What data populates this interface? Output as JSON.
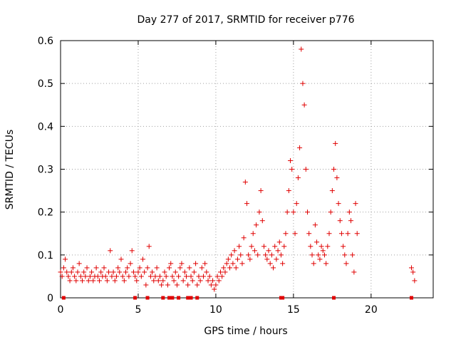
{
  "chart_data": {
    "type": "scatter",
    "title": "Day 277 of 2017, SRMTID for receiver p776",
    "xlabel": "GPS time / hours",
    "ylabel": "SRMTID / TECUs",
    "xlim": [
      0,
      24
    ],
    "ylim": [
      0,
      0.6
    ],
    "xticks": [
      0,
      5,
      10,
      15,
      20
    ],
    "yticks": [
      0,
      0.1,
      0.2,
      0.3,
      0.4,
      0.5,
      0.6
    ],
    "grid": true,
    "marker": "+",
    "color": "#e00000",
    "series": [
      {
        "name": "SRMTID",
        "points": [
          [
            0.0,
            0.06
          ],
          [
            0.1,
            0.05
          ],
          [
            0.2,
            0.07
          ],
          [
            0.3,
            0.09
          ],
          [
            0.4,
            0.06
          ],
          [
            0.5,
            0.05
          ],
          [
            0.6,
            0.04
          ],
          [
            0.7,
            0.06
          ],
          [
            0.8,
            0.07
          ],
          [
            0.9,
            0.05
          ],
          [
            1.0,
            0.04
          ],
          [
            1.1,
            0.06
          ],
          [
            1.2,
            0.08
          ],
          [
            1.3,
            0.05
          ],
          [
            1.4,
            0.04
          ],
          [
            1.5,
            0.06
          ],
          [
            1.6,
            0.05
          ],
          [
            1.7,
            0.07
          ],
          [
            1.8,
            0.04
          ],
          [
            1.9,
            0.05
          ],
          [
            2.0,
            0.06
          ],
          [
            2.1,
            0.04
          ],
          [
            2.2,
            0.05
          ],
          [
            2.3,
            0.07
          ],
          [
            2.4,
            0.05
          ],
          [
            2.5,
            0.04
          ],
          [
            2.6,
            0.06
          ],
          [
            2.7,
            0.05
          ],
          [
            2.8,
            0.07
          ],
          [
            2.9,
            0.05
          ],
          [
            3.0,
            0.04
          ],
          [
            3.1,
            0.06
          ],
          [
            3.2,
            0.11
          ],
          [
            3.3,
            0.05
          ],
          [
            3.4,
            0.06
          ],
          [
            3.5,
            0.04
          ],
          [
            3.6,
            0.05
          ],
          [
            3.7,
            0.07
          ],
          [
            3.8,
            0.06
          ],
          [
            3.9,
            0.09
          ],
          [
            4.0,
            0.05
          ],
          [
            4.1,
            0.04
          ],
          [
            4.2,
            0.06
          ],
          [
            4.3,
            0.07
          ],
          [
            4.4,
            0.05
          ],
          [
            4.5,
            0.08
          ],
          [
            4.6,
            0.11
          ],
          [
            4.7,
            0.06
          ],
          [
            4.8,
            0.05
          ],
          [
            4.9,
            0.04
          ],
          [
            5.0,
            0.06
          ],
          [
            5.1,
            0.07
          ],
          [
            5.2,
            0.05
          ],
          [
            5.3,
            0.09
          ],
          [
            5.4,
            0.06
          ],
          [
            5.5,
            0.03
          ],
          [
            5.6,
            0.07
          ],
          [
            5.7,
            0.12
          ],
          [
            5.8,
            0.05
          ],
          [
            5.9,
            0.06
          ],
          [
            6.0,
            0.04
          ],
          [
            6.1,
            0.05
          ],
          [
            6.2,
            0.07
          ],
          [
            6.3,
            0.04
          ],
          [
            6.4,
            0.05
          ],
          [
            6.5,
            0.03
          ],
          [
            6.6,
            0.04
          ],
          [
            6.7,
            0.06
          ],
          [
            6.8,
            0.05
          ],
          [
            6.9,
            0.03
          ],
          [
            7.0,
            0.07
          ],
          [
            7.1,
            0.08
          ],
          [
            7.2,
            0.05
          ],
          [
            7.3,
            0.04
          ],
          [
            7.4,
            0.06
          ],
          [
            7.5,
            0.03
          ],
          [
            7.6,
            0.05
          ],
          [
            7.7,
            0.07
          ],
          [
            7.8,
            0.08
          ],
          [
            7.9,
            0.04
          ],
          [
            8.0,
            0.06
          ],
          [
            8.1,
            0.05
          ],
          [
            8.2,
            0.03
          ],
          [
            8.3,
            0.07
          ],
          [
            8.4,
            0.05
          ],
          [
            8.5,
            0.04
          ],
          [
            8.6,
            0.06
          ],
          [
            8.7,
            0.08
          ],
          [
            8.8,
            0.03
          ],
          [
            8.9,
            0.05
          ],
          [
            9.0,
            0.04
          ],
          [
            9.1,
            0.07
          ],
          [
            9.2,
            0.05
          ],
          [
            9.3,
            0.08
          ],
          [
            9.4,
            0.06
          ],
          [
            9.5,
            0.04
          ],
          [
            9.6,
            0.05
          ],
          [
            9.7,
            0.03
          ],
          [
            9.8,
            0.04
          ],
          [
            9.9,
            0.02
          ],
          [
            10.0,
            0.03
          ],
          [
            10.1,
            0.05
          ],
          [
            10.2,
            0.04
          ],
          [
            10.3,
            0.06
          ],
          [
            10.4,
            0.05
          ],
          [
            10.5,
            0.07
          ],
          [
            10.6,
            0.06
          ],
          [
            10.7,
            0.08
          ],
          [
            10.8,
            0.09
          ],
          [
            10.9,
            0.07
          ],
          [
            11.0,
            0.1
          ],
          [
            11.1,
            0.08
          ],
          [
            11.2,
            0.11
          ],
          [
            11.3,
            0.07
          ],
          [
            11.4,
            0.09
          ],
          [
            11.5,
            0.12
          ],
          [
            11.6,
            0.1
          ],
          [
            11.7,
            0.08
          ],
          [
            11.8,
            0.14
          ],
          [
            11.9,
            0.27
          ],
          [
            12.0,
            0.22
          ],
          [
            12.1,
            0.1
          ],
          [
            12.2,
            0.09
          ],
          [
            12.3,
            0.12
          ],
          [
            12.4,
            0.15
          ],
          [
            12.5,
            0.11
          ],
          [
            12.6,
            0.17
          ],
          [
            12.7,
            0.1
          ],
          [
            12.8,
            0.2
          ],
          [
            12.9,
            0.25
          ],
          [
            13.0,
            0.18
          ],
          [
            13.1,
            0.12
          ],
          [
            13.2,
            0.1
          ],
          [
            13.3,
            0.09
          ],
          [
            13.4,
            0.11
          ],
          [
            13.5,
            0.08
          ],
          [
            13.6,
            0.1
          ],
          [
            13.7,
            0.07
          ],
          [
            13.8,
            0.12
          ],
          [
            13.9,
            0.09
          ],
          [
            14.0,
            0.11
          ],
          [
            14.1,
            0.13
          ],
          [
            14.2,
            0.1
          ],
          [
            14.3,
            0.08
          ],
          [
            14.4,
            0.12
          ],
          [
            14.5,
            0.15
          ],
          [
            14.6,
            0.2
          ],
          [
            14.7,
            0.25
          ],
          [
            14.8,
            0.32
          ],
          [
            14.9,
            0.3
          ],
          [
            15.0,
            0.2
          ],
          [
            15.1,
            0.15
          ],
          [
            15.2,
            0.22
          ],
          [
            15.3,
            0.28
          ],
          [
            15.4,
            0.35
          ],
          [
            15.5,
            0.58
          ],
          [
            15.6,
            0.5
          ],
          [
            15.7,
            0.45
          ],
          [
            15.8,
            0.3
          ],
          [
            15.9,
            0.2
          ],
          [
            16.0,
            0.15
          ],
          [
            16.1,
            0.12
          ],
          [
            16.2,
            0.1
          ],
          [
            16.3,
            0.08
          ],
          [
            16.4,
            0.17
          ],
          [
            16.5,
            0.13
          ],
          [
            16.6,
            0.1
          ],
          [
            16.7,
            0.09
          ],
          [
            16.8,
            0.12
          ],
          [
            16.9,
            0.11
          ],
          [
            17.0,
            0.1
          ],
          [
            17.1,
            0.08
          ],
          [
            17.2,
            0.12
          ],
          [
            17.3,
            0.15
          ],
          [
            17.4,
            0.2
          ],
          [
            17.5,
            0.25
          ],
          [
            17.6,
            0.3
          ],
          [
            17.7,
            0.36
          ],
          [
            17.8,
            0.28
          ],
          [
            17.9,
            0.22
          ],
          [
            18.0,
            0.18
          ],
          [
            18.1,
            0.15
          ],
          [
            18.2,
            0.12
          ],
          [
            18.3,
            0.1
          ],
          [
            18.4,
            0.08
          ],
          [
            18.5,
            0.15
          ],
          [
            18.6,
            0.2
          ],
          [
            18.7,
            0.18
          ],
          [
            18.8,
            0.1
          ],
          [
            18.9,
            0.06
          ],
          [
            19.0,
            0.22
          ],
          [
            19.1,
            0.15
          ],
          [
            22.6,
            0.07
          ],
          [
            22.7,
            0.06
          ],
          [
            22.8,
            0.04
          ]
        ]
      }
    ],
    "baseline_markers": [
      0.2,
      4.8,
      5.6,
      6.6,
      7.0,
      7.2,
      7.6,
      8.2,
      8.4,
      8.8,
      14.2,
      14.3,
      17.6,
      22.6
    ]
  }
}
